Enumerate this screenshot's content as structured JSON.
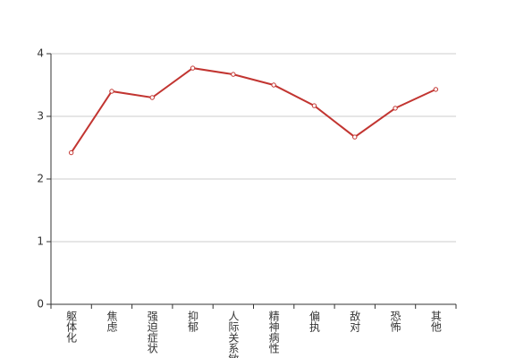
{
  "chart_data": {
    "type": "line",
    "categories": [
      "躯体化",
      "焦虑",
      "强迫症状",
      "抑郁",
      "人际关系敏感",
      "精神病性",
      "偏执",
      "敌对",
      "恐怖",
      "其他"
    ],
    "series": [
      {
        "color": "#c23531",
        "values": [
          2.42,
          3.4,
          3.3,
          3.77,
          3.67,
          3.5,
          3.17,
          2.67,
          3.13,
          3.43
        ]
      }
    ],
    "ylim": [
      0,
      4
    ],
    "yticks": [
      0,
      1,
      2,
      3,
      4
    ],
    "grid": true
  }
}
